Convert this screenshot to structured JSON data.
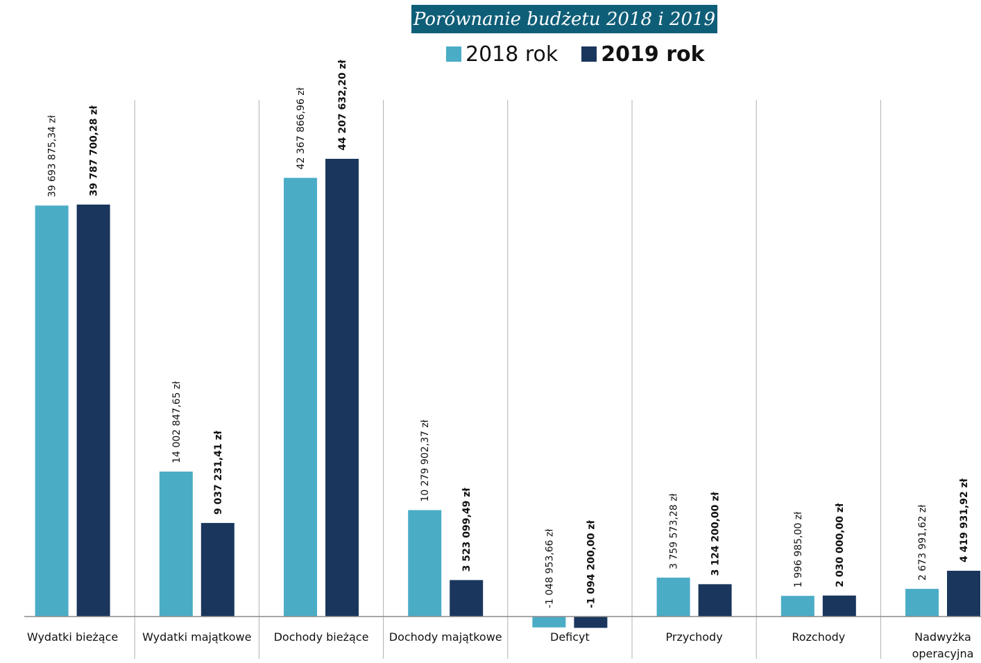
{
  "title": "Porównanie budżetu 2018 i 2019",
  "legend": [
    {
      "label": "2018 rok",
      "color": "#4bacc6"
    },
    {
      "label": "2019 rok",
      "color": "#1a365d"
    }
  ],
  "chart_data": {
    "type": "bar",
    "title": "Porównanie budżetu 2018 i 2019",
    "categories": [
      "Wydatki bieżące",
      "Wydatki majątkowe",
      "Dochody bieżące",
      "Dochody majątkowe",
      "Deficyt",
      "Przychody",
      "Rozchody",
      "Nadwyżka operacyjna"
    ],
    "category_lines": [
      [
        "Wydatki bieżące"
      ],
      [
        "Wydatki majątkowe"
      ],
      [
        "Dochody bieżące"
      ],
      [
        "Dochody majątkowe"
      ],
      [
        "Deficyt"
      ],
      [
        "Przychody"
      ],
      [
        "Rozchody"
      ],
      [
        "Nadwyżka",
        "operacyjna"
      ]
    ],
    "series": [
      {
        "name": "2018 rok",
        "color": "#4bacc6",
        "values": [
          39693875.34,
          14002847.65,
          42367866.96,
          10279902.37,
          -1048953.66,
          3759573.28,
          1996985.0,
          2673991.62
        ],
        "labels": [
          "39 693 875,34 zł",
          "14 002 847,65 zł",
          "42 367 866,96 zł",
          "10 279 902,37 zł",
          "-1 048 953,66 zł",
          "3 759 573,28 zł",
          "1 996 985,00 zł",
          "2 673 991,62 zł"
        ]
      },
      {
        "name": "2019 rok",
        "color": "#1a365d",
        "values": [
          39787700.28,
          9037231.41,
          44207632.2,
          3523099.49,
          -1094200.0,
          3124200.0,
          2030000.0,
          4419931.92
        ],
        "labels": [
          "39 787 700,28 zł",
          "9 037 231,41 zł",
          "44 207 632,20 zł",
          "3 523 099,49 zł",
          "-1 094 200,00 zł",
          "3 124 200,00 zł",
          "2 030 000,00 zł",
          "4 419 931,92 zł"
        ]
      }
    ],
    "grid": "vertical separators between categories",
    "legend_position": "top"
  }
}
